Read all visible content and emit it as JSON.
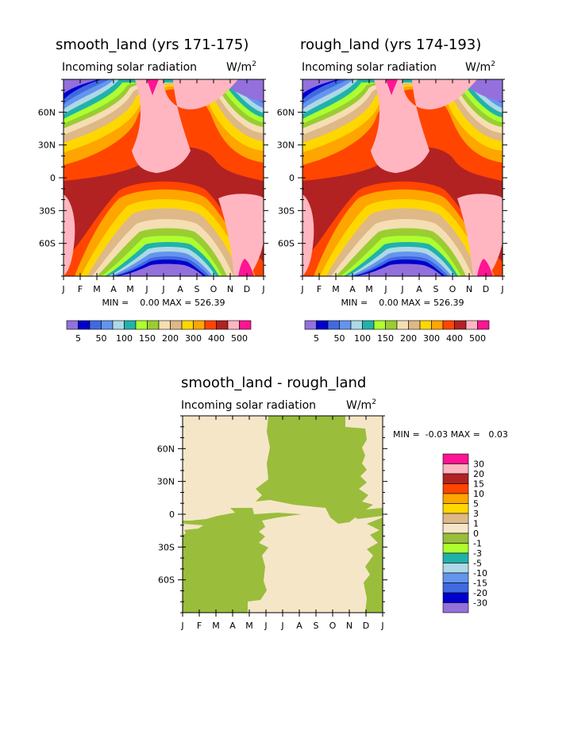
{
  "chart_data": [
    {
      "type": "heatmap",
      "title": "smooth_land (yrs 171-175)",
      "subtitle": "Incoming solar radiation",
      "units": "W/m2",
      "x_ticks": [
        "J",
        "F",
        "M",
        "A",
        "M",
        "J",
        "J",
        "A",
        "S",
        "O",
        "N",
        "D",
        "J"
      ],
      "y_ticks": [
        "60N",
        "30N",
        "0",
        "30S",
        "60S"
      ],
      "y_tick_values": [
        60,
        30,
        0,
        -30,
        -60
      ],
      "ylim": [
        -90,
        90
      ],
      "stats": "MIN =    0.00 MAX = 526.39",
      "min": 0.0,
      "max": 526.39,
      "levels": [
        "5",
        "50",
        "100",
        "150",
        "200",
        "300",
        "400",
        "500"
      ],
      "colors": [
        "#9370db",
        "#0000cd",
        "#4169e1",
        "#6495ed",
        "#add8e6",
        "#20b2aa",
        "#adff2f",
        "#9acd32",
        "#f5deb3",
        "#deb887",
        "#ffd700",
        "#ffa500",
        "#ff4500",
        "#b22222",
        "#ffb6c1",
        "#ff1493"
      ]
    },
    {
      "type": "heatmap",
      "title": "rough_land (yrs 174-193)",
      "subtitle": "Incoming solar radiation",
      "units": "W/m2",
      "x_ticks": [
        "J",
        "F",
        "M",
        "A",
        "M",
        "J",
        "J",
        "A",
        "S",
        "O",
        "N",
        "D",
        "J"
      ],
      "y_ticks": [
        "60N",
        "30N",
        "0",
        "30S",
        "60S"
      ],
      "y_tick_values": [
        60,
        30,
        0,
        -30,
        -60
      ],
      "ylim": [
        -90,
        90
      ],
      "stats": "MIN =    0.00 MAX = 526.39",
      "min": 0.0,
      "max": 526.39,
      "levels": [
        "5",
        "50",
        "100",
        "150",
        "200",
        "300",
        "400",
        "500"
      ],
      "colors": [
        "#9370db",
        "#0000cd",
        "#4169e1",
        "#6495ed",
        "#add8e6",
        "#20b2aa",
        "#adff2f",
        "#9acd32",
        "#f5deb3",
        "#deb887",
        "#ffd700",
        "#ffa500",
        "#ff4500",
        "#b22222",
        "#ffb6c1",
        "#ff1493"
      ]
    },
    {
      "type": "heatmap",
      "title": "smooth_land - rough_land",
      "subtitle": "Incoming solar radiation",
      "units": "W/m2",
      "x_ticks": [
        "J",
        "F",
        "M",
        "A",
        "M",
        "J",
        "J",
        "A",
        "S",
        "O",
        "N",
        "D",
        "J"
      ],
      "y_ticks": [
        "60N",
        "30N",
        "0",
        "30S",
        "60S"
      ],
      "y_tick_values": [
        60,
        30,
        0,
        -30,
        -60
      ],
      "ylim": [
        -90,
        90
      ],
      "stats": "MIN =  -0.03 MAX =   0.03",
      "min": -0.03,
      "max": 0.03,
      "levels": [
        "30",
        "20",
        "15",
        "10",
        "5",
        "3",
        "1",
        "0",
        "-1",
        "-3",
        "-5",
        "-10",
        "-15",
        "-20",
        "-30"
      ],
      "colors": [
        "#ff1493",
        "#ffb6c1",
        "#b22222",
        "#ff4500",
        "#ffa500",
        "#ffd700",
        "#deb887",
        "#f5e6c8",
        "#9abd3c",
        "#adff2f",
        "#20b2aa",
        "#add8e6",
        "#6495ed",
        "#4169e1",
        "#0000cd",
        "#9370db"
      ]
    }
  ]
}
